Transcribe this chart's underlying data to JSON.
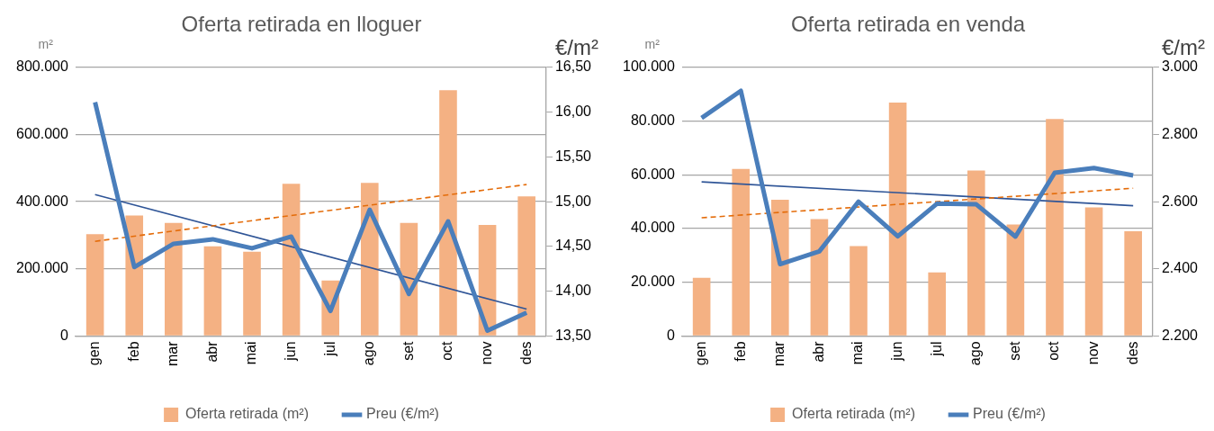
{
  "chart_data": [
    {
      "type": "bar",
      "title": "Oferta retirada en lloguer",
      "ylabel": "m²",
      "y2label": "€/m²",
      "categories": [
        "gen",
        "feb",
        "mar",
        "abr",
        "mai",
        "jun",
        "jul",
        "ago",
        "set",
        "oct",
        "nov",
        "des"
      ],
      "series": [
        {
          "name": "Oferta retirada (m²)",
          "color": "#f4b183",
          "values": [
            303000,
            359000,
            337000,
            267000,
            251000,
            453000,
            165000,
            456000,
            337000,
            732000,
            331000,
            416000
          ]
        },
        {
          "type": "line",
          "name": "Preu (€/m²)",
          "color": "#4a7ebb",
          "axis": "y2",
          "values": [
            16.11,
            14.27,
            14.53,
            14.58,
            14.48,
            14.61,
            13.78,
            14.91,
            13.97,
            14.78,
            13.56,
            13.76
          ]
        },
        {
          "type": "line",
          "color": "#e46c0a",
          "line_style": "dashed",
          "x": [
            "gen",
            "des"
          ],
          "values": [
            282000,
            451000
          ]
        },
        {
          "type": "line",
          "color": "#2f5597",
          "axis": "y2",
          "x": [
            "gen",
            "des"
          ],
          "values": [
            15.08,
            13.8
          ]
        }
      ],
      "ylim": [
        0,
        800000
      ],
      "yticks": [
        {
          "value": 0,
          "label": "0"
        },
        {
          "value": 200000,
          "label": "200.000"
        },
        {
          "value": 400000,
          "label": "400.000"
        },
        {
          "value": 600000,
          "label": "600.000"
        },
        {
          "value": 800000,
          "label": "800.000"
        }
      ],
      "y2lim": [
        13.5,
        16.5
      ],
      "y2ticks": [
        {
          "value": 13.5,
          "label": "13,50"
        },
        {
          "value": 14,
          "label": "14,00"
        },
        {
          "value": 14.5,
          "label": "14,50"
        },
        {
          "value": 15,
          "label": "15,00"
        },
        {
          "value": 15.5,
          "label": "15,50"
        },
        {
          "value": 16,
          "label": "16,00"
        },
        {
          "value": 16.5,
          "label": "16,50"
        }
      ],
      "grid": "y",
      "legend": "bottom",
      "marker": "none"
    },
    {
      "type": "bar",
      "title": "Oferta retirada en venda",
      "ylabel": "m²",
      "y2label": "€/m²",
      "categories": [
        "gen",
        "feb",
        "mar",
        "abr",
        "mai",
        "jun",
        "jul",
        "ago",
        "set",
        "oct",
        "nov",
        "des"
      ],
      "series": [
        {
          "name": "Oferta retirada (m²)",
          "color": "#f4b183",
          "values": [
            21700,
            62200,
            50700,
            43500,
            33500,
            86900,
            23700,
            61600,
            41500,
            80800,
            47900,
            39000
          ]
        },
        {
          "type": "line",
          "name": "Preu (€/m²)",
          "color": "#4a7ebb",
          "axis": "y2",
          "values": [
            2849,
            2930,
            2414,
            2452,
            2600,
            2497,
            2594,
            2592,
            2496,
            2686,
            2700,
            2678
          ]
        },
        {
          "type": "line",
          "color": "#e46c0a",
          "line_style": "dashed",
          "x": [
            "gen",
            "des"
          ],
          "values": [
            44000,
            55000
          ]
        },
        {
          "type": "line",
          "color": "#2f5597",
          "axis": "y2",
          "x": [
            "gen",
            "des"
          ],
          "values": [
            2659,
            2588
          ]
        }
      ],
      "ylim": [
        0,
        100000
      ],
      "yticks": [
        {
          "value": 0,
          "label": "0"
        },
        {
          "value": 20000,
          "label": "20.000"
        },
        {
          "value": 40000,
          "label": "40.000"
        },
        {
          "value": 60000,
          "label": "60.000"
        },
        {
          "value": 80000,
          "label": "80.000"
        },
        {
          "value": 100000,
          "label": "100.000"
        }
      ],
      "y2lim": [
        2200,
        3000
      ],
      "y2ticks": [
        {
          "value": 2200,
          "label": "2.200"
        },
        {
          "value": 2400,
          "label": "2.400"
        },
        {
          "value": 2600,
          "label": "2.600"
        },
        {
          "value": 2800,
          "label": "2.800"
        },
        {
          "value": 3000,
          "label": "3.000"
        }
      ],
      "grid": "y",
      "legend": "bottom",
      "marker": "none"
    }
  ]
}
